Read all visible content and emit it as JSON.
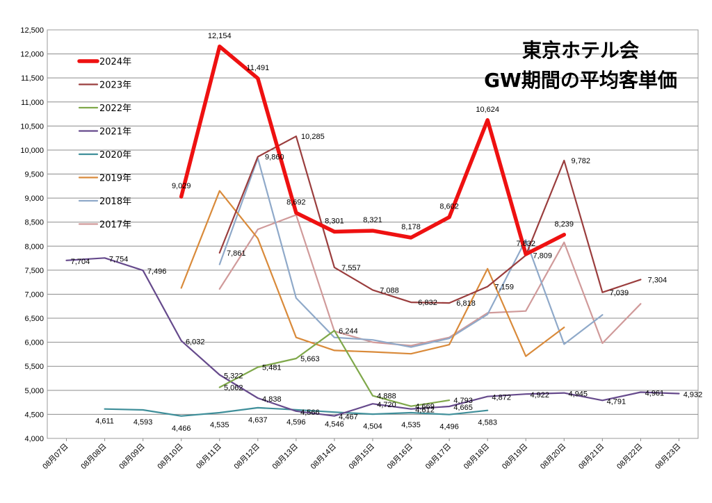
{
  "chart_data": {
    "type": "line",
    "title": [
      "東京ホテル会",
      "GW期間の平均客単価"
    ],
    "xlabel": "",
    "ylabel": "",
    "ylim": [
      4000,
      12500
    ],
    "yticks": [
      4000,
      4500,
      5000,
      5500,
      6000,
      6500,
      7000,
      7500,
      8000,
      8500,
      9000,
      9500,
      10000,
      10500,
      11000,
      11500,
      12000,
      12500
    ],
    "ytick_labels": [
      "4,000",
      "4,500",
      "5,000",
      "5,500",
      "6,000",
      "6,500",
      "7,000",
      "7,500",
      "8,000",
      "8,500",
      "9,000",
      "9,500",
      "10,000",
      "10,500",
      "11,000",
      "11,500",
      "12,000",
      "12,500"
    ],
    "categories": [
      "08月07日",
      "08月08日",
      "08月09日",
      "08月10日",
      "08月11日",
      "08月12日",
      "08月13日",
      "08月14日",
      "08月15日",
      "08月16日",
      "08月17日",
      "08月18日",
      "08月19日",
      "08月20日",
      "08月21日",
      "08月22日",
      "08月23日"
    ],
    "grid": true,
    "legend_position": "top-left",
    "series": [
      {
        "name": "2017年",
        "color": "#d09a9a",
        "width": 2.2,
        "values": [
          null,
          null,
          null,
          null,
          7110,
          8350,
          8650,
          6230,
          6000,
          5930,
          6100,
          6610,
          6650,
          8080,
          5980,
          6800,
          null
        ],
        "labels": [
          null,
          null,
          null,
          null,
          null,
          null,
          null,
          null,
          null,
          null,
          null,
          null,
          null,
          null,
          null,
          null,
          null
        ]
      },
      {
        "name": "2018年",
        "color": "#8fa9c9",
        "width": 2.2,
        "values": [
          null,
          null,
          null,
          null,
          7620,
          9830,
          6920,
          6100,
          6050,
          5900,
          6080,
          6580,
          8130,
          5960,
          6570,
          null,
          null
        ],
        "labels": [
          null,
          null,
          null,
          null,
          null,
          null,
          null,
          null,
          null,
          null,
          null,
          null,
          null,
          null,
          null,
          null,
          null
        ]
      },
      {
        "name": "2019年",
        "color": "#d98a3a",
        "width": 2.2,
        "values": [
          null,
          null,
          null,
          7130,
          9150,
          8160,
          6100,
          5830,
          5800,
          5760,
          5950,
          7530,
          5710,
          6310,
          null,
          null,
          null
        ],
        "labels": [
          null,
          null,
          null,
          null,
          null,
          null,
          null,
          null,
          null,
          null,
          null,
          null,
          null,
          null,
          null,
          null,
          null
        ]
      },
      {
        "name": "2020年",
        "color": "#3f8f9a",
        "width": 2.2,
        "values": [
          null,
          4611,
          4593,
          4466,
          4535,
          4637,
          4596,
          4546,
          4504,
          4535,
          4496,
          4583,
          null,
          null,
          null,
          null,
          null
        ],
        "labels": [
          null,
          "4,611",
          "4,593",
          "4,466",
          "4,535",
          "4,637",
          "4,596",
          "4,546",
          "4,504",
          "4,535",
          "4,496",
          "4,583",
          null,
          null,
          null,
          null,
          null
        ]
      },
      {
        "name": "2021年",
        "color": "#664a8c",
        "width": 2.2,
        "values": [
          7704,
          7754,
          7496,
          6032,
          5322,
          4838,
          4566,
          4467,
          4720,
          4612,
          4665,
          4872,
          4922,
          4945,
          4791,
          4961,
          4932
        ],
        "labels": [
          "7,704",
          "7,754",
          "7,496",
          "6,032",
          "5,322",
          "4,838",
          "4,566",
          "4,467",
          "4,720",
          "4,612",
          "4,665",
          "4,872",
          "4,922",
          "4,945",
          "4,791",
          "4,961",
          "4,932"
        ]
      },
      {
        "name": "2022年",
        "color": "#7fa84a",
        "width": 2.2,
        "values": [
          null,
          null,
          null,
          null,
          5062,
          5481,
          5663,
          6244,
          4888,
          4669,
          4793,
          null,
          null,
          null,
          null,
          null,
          null
        ],
        "labels": [
          null,
          null,
          null,
          null,
          "5,062",
          "5,481",
          "5,663",
          "6,244",
          "4,888",
          "4,669",
          "4,793",
          null,
          null,
          null,
          null,
          null,
          null
        ]
      },
      {
        "name": "2023年",
        "color": "#9a3d3d",
        "width": 2.2,
        "values": [
          null,
          null,
          null,
          null,
          7861,
          9860,
          10285,
          7557,
          7088,
          6832,
          6818,
          7159,
          7809,
          9782,
          7039,
          7304,
          null
        ],
        "labels": [
          null,
          null,
          null,
          null,
          "7,861",
          "9,860",
          "10,285",
          "7,557",
          "7,088",
          "6,832",
          "6,818",
          "7,159",
          "7,809",
          "9,782",
          "7,039",
          "7,304",
          null
        ]
      },
      {
        "name": "2024年",
        "color": "#ee1111",
        "width": 5.5,
        "values": [
          null,
          null,
          null,
          9029,
          12154,
          11491,
          8692,
          8301,
          8321,
          8178,
          8602,
          10624,
          7832,
          8239,
          null,
          null,
          null
        ],
        "labels": [
          null,
          null,
          null,
          "9,029",
          "12,154",
          "11,491",
          "8,692",
          "8,301",
          "8,321",
          "8,178",
          "8,602",
          "10,624",
          "7,832",
          "8,239",
          null,
          null,
          null
        ]
      }
    ]
  }
}
